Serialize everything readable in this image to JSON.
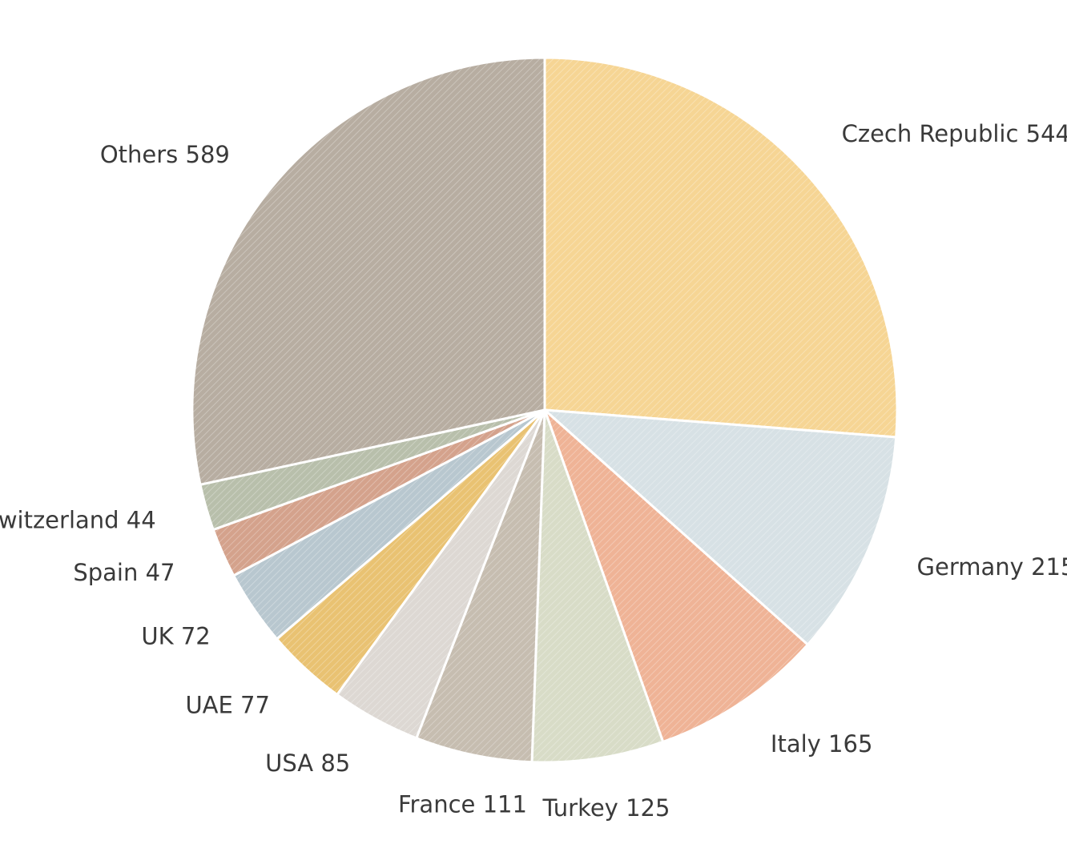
{
  "chart_data": {
    "type": "pie",
    "categories": [
      "Czech Republic",
      "Germany",
      "Italy",
      "Turkey",
      "France",
      "USA",
      "UAE",
      "UK",
      "Spain",
      "Switzerland",
      "Others"
    ],
    "values": [
      544,
      215,
      165,
      125,
      111,
      85,
      77,
      72,
      47,
      44,
      589
    ],
    "colors": [
      "#f6d594",
      "#d7e1e5",
      "#efb396",
      "#d8dcc7",
      "#c6bdb0",
      "#ddd8d3",
      "#e9c272",
      "#b8c7cf",
      "#d4a28c",
      "#b8bfab",
      "#b7ada1"
    ]
  }
}
